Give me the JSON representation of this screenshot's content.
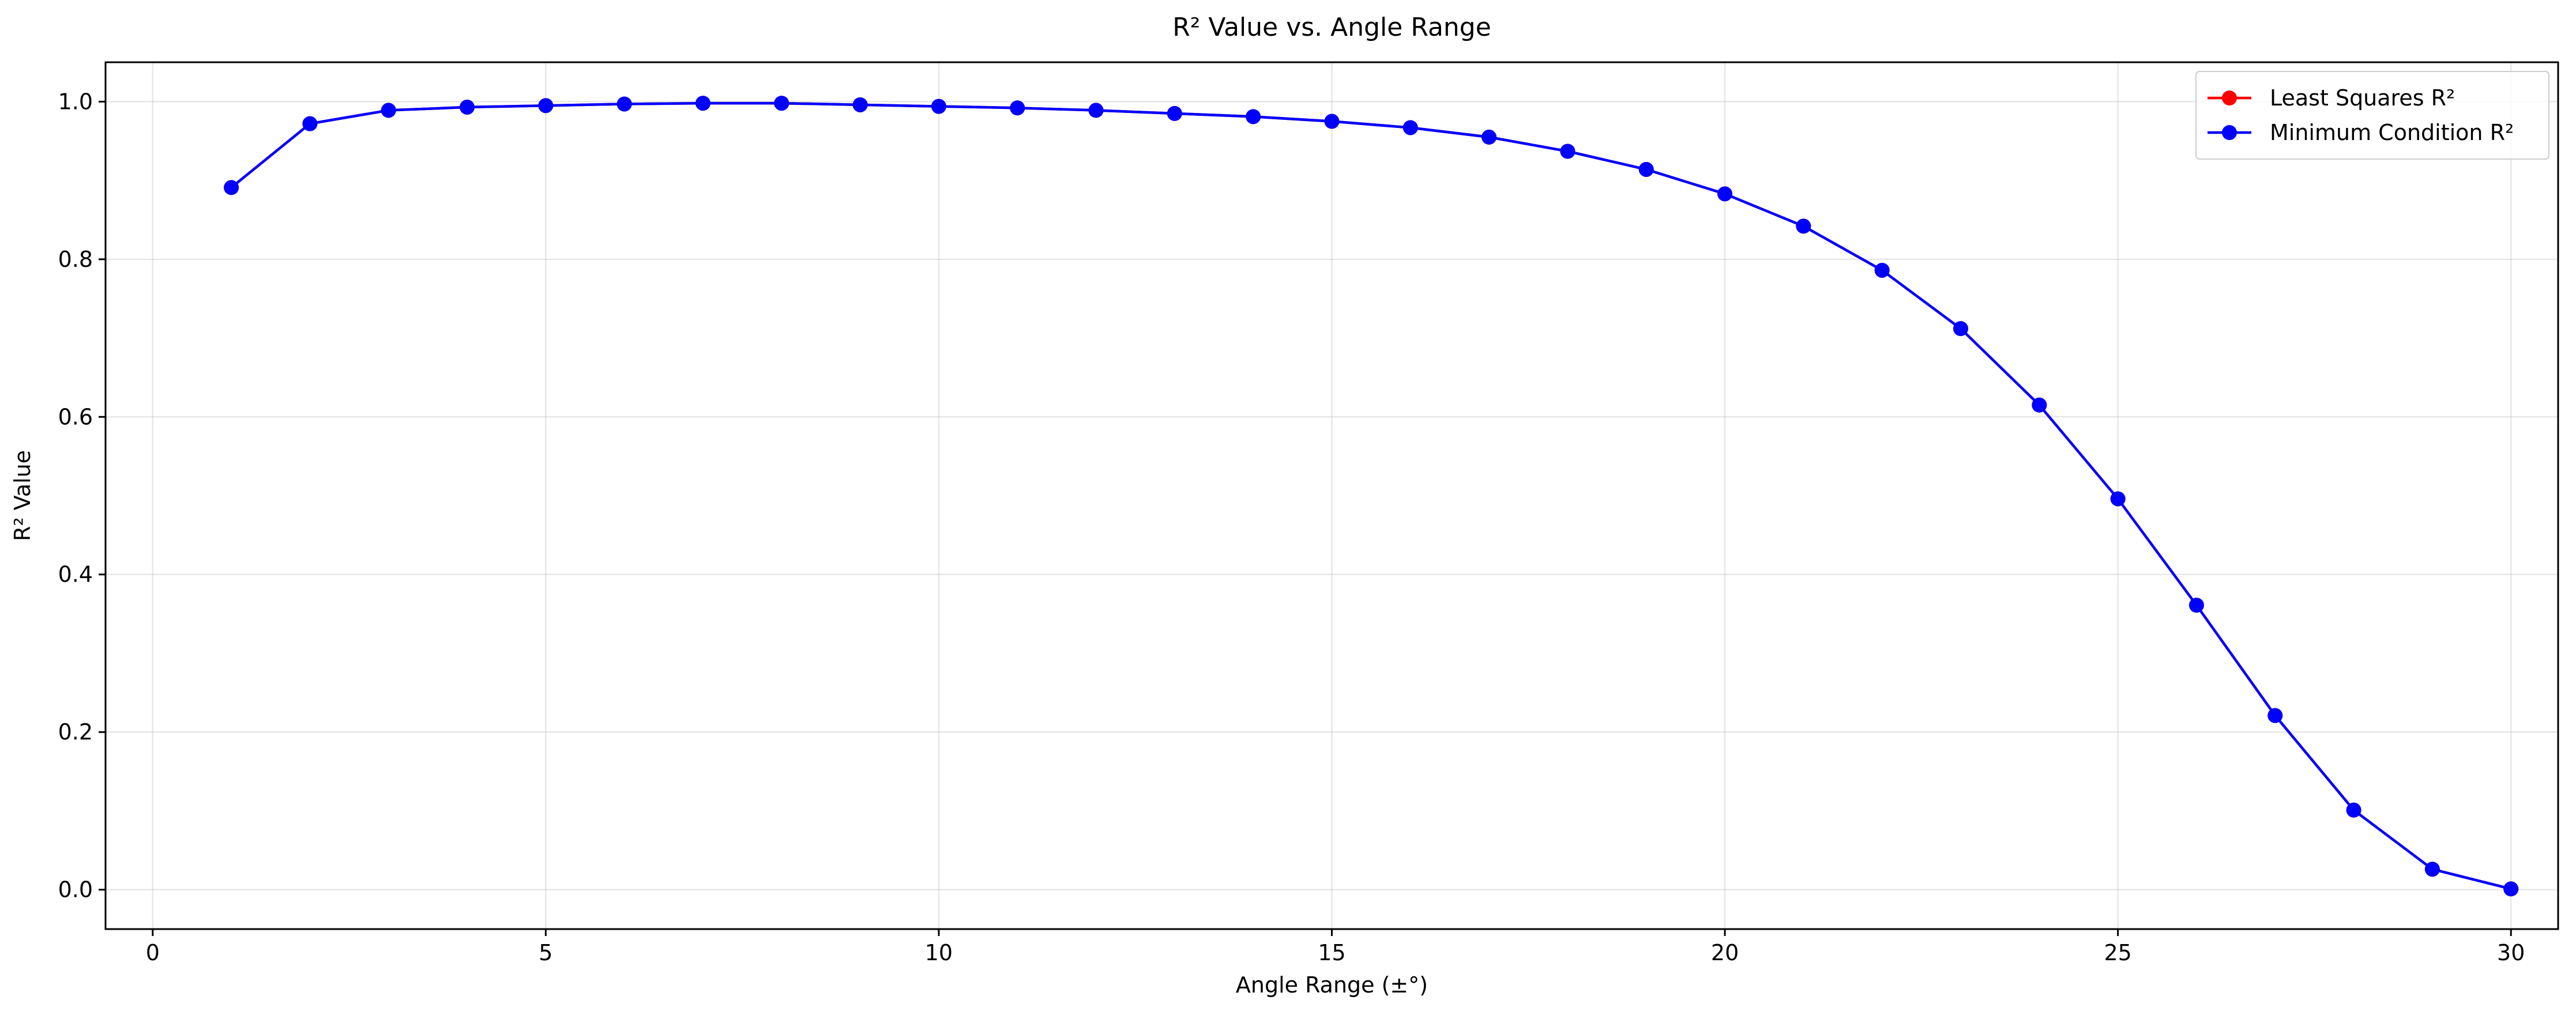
{
  "chart_data": {
    "type": "line",
    "title": "R² Value vs. Angle Range",
    "xlabel": "Angle Range (±°)",
    "ylabel": "R² Value",
    "xlim": [
      -0.6,
      30.6
    ],
    "ylim": [
      -0.05,
      1.05
    ],
    "xticks": [
      0,
      5,
      10,
      15,
      20,
      25,
      30
    ],
    "yticks": [
      0.0,
      0.2,
      0.4,
      0.6,
      0.8,
      1.0
    ],
    "xtick_labels": [
      "0",
      "5",
      "10",
      "15",
      "20",
      "25",
      "30"
    ],
    "ytick_labels": [
      "0.0",
      "0.2",
      "0.4",
      "0.6",
      "0.8",
      "1.0"
    ],
    "grid": true,
    "legend_position": "top-right",
    "x": [
      1,
      2,
      3,
      4,
      5,
      6,
      7,
      8,
      9,
      10,
      11,
      12,
      13,
      14,
      15,
      16,
      17,
      18,
      19,
      20,
      21,
      22,
      23,
      24,
      25,
      26,
      27,
      28,
      29,
      30
    ],
    "series": [
      {
        "name": "Least Squares R²",
        "color": "#ff0000",
        "values": [
          0.891,
          0.972,
          0.989,
          0.993,
          0.995,
          0.997,
          0.998,
          0.998,
          0.996,
          0.994,
          0.992,
          0.989,
          0.985,
          0.981,
          0.975,
          0.967,
          0.955,
          0.937,
          0.914,
          0.883,
          0.842,
          0.786,
          0.712,
          0.615,
          0.496,
          0.361,
          0.221,
          0.101,
          0.026,
          0.001
        ]
      },
      {
        "name": "Minimum Condition R²",
        "color": "#0000ff",
        "values": [
          0.891,
          0.972,
          0.989,
          0.993,
          0.995,
          0.997,
          0.998,
          0.998,
          0.996,
          0.994,
          0.992,
          0.989,
          0.985,
          0.981,
          0.975,
          0.967,
          0.955,
          0.937,
          0.914,
          0.883,
          0.842,
          0.786,
          0.712,
          0.615,
          0.496,
          0.361,
          0.221,
          0.101,
          0.026,
          0.001
        ]
      }
    ]
  }
}
